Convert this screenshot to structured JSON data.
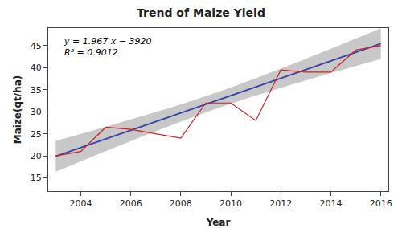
{
  "chart_data": {
    "type": "line",
    "title": "Trend of Maize Yield",
    "x_label": "Year",
    "y_label": "Maize(qt/ha)",
    "x": [
      2003,
      2004,
      2005,
      2006,
      2007,
      2008,
      2009,
      2010,
      2011,
      2012,
      2013,
      2014,
      2015,
      2016
    ],
    "series": [
      {
        "type": "band",
        "color": "#c8c8c8",
        "lower": [
          16.399,
          18.746,
          21.069,
          23.358,
          25.597,
          27.767,
          29.843,
          31.81,
          33.668,
          35.432,
          37.127,
          38.772,
          40.383,
          41.97
        ],
        "upper": [
          23.403,
          24.99,
          26.601,
          28.246,
          29.941,
          31.705,
          33.563,
          35.53,
          37.606,
          39.776,
          42.015,
          44.304,
          46.627,
          48.974
        ]
      },
      {
        "type": "line",
        "color": "#3845a6",
        "values": [
          19.901,
          21.868,
          23.835,
          25.802,
          27.769,
          29.736,
          31.703,
          33.67,
          35.637,
          37.604,
          39.571,
          41.538,
          43.505,
          45.472
        ]
      },
      {
        "type": "line",
        "color": "#cc2222",
        "values": [
          20.0,
          21.0,
          26.5,
          26.0,
          25.0,
          24.0,
          32.0,
          32.0,
          28.0,
          39.5,
          39.0,
          39.0,
          44.0,
          45.0
        ]
      }
    ],
    "annotations": [
      "y = 1.967 x − 3920",
      "R² = 0.9012"
    ],
    "xlim": [
      2002.7,
      2016.3
    ],
    "xticks": [
      2004,
      2006,
      2008,
      2010,
      2012,
      2014,
      2016
    ],
    "ylim": [
      12,
      49
    ],
    "yticks": [
      15,
      20,
      25,
      30,
      35,
      40,
      45
    ],
    "grid": false
  }
}
